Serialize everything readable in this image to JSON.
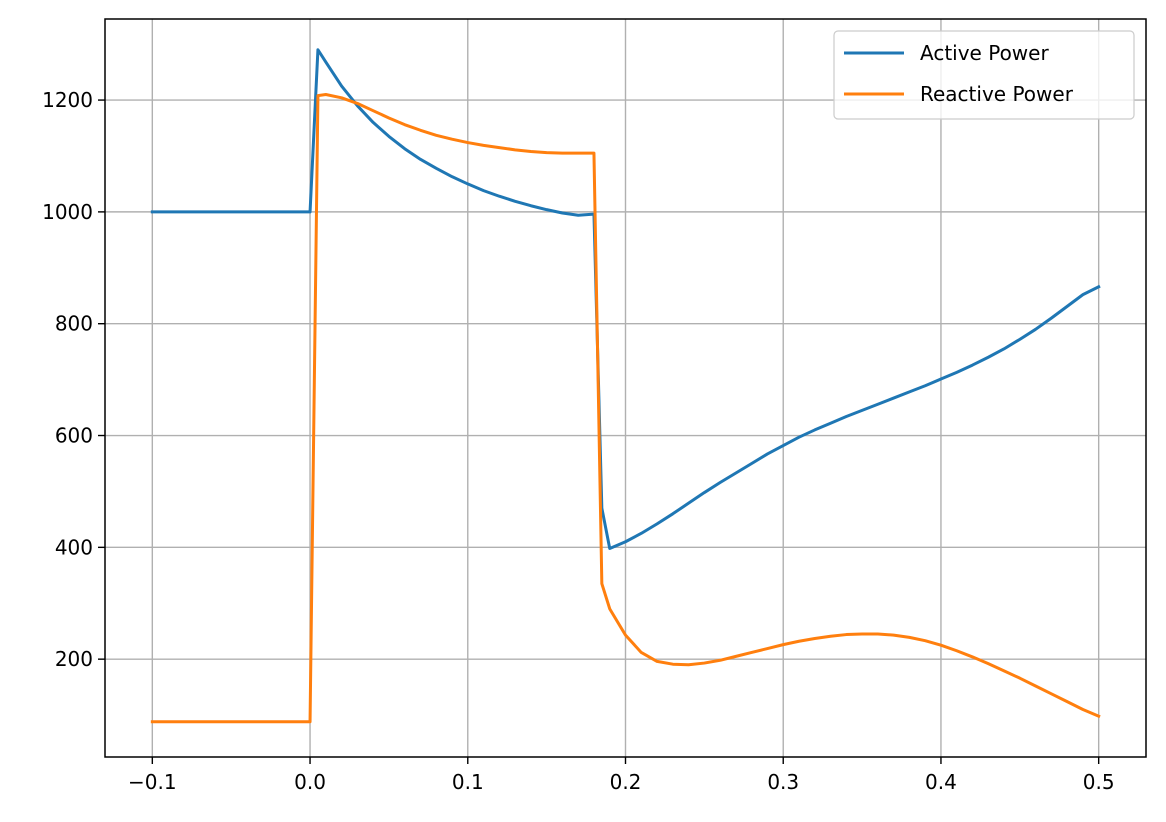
{
  "chart_data": {
    "type": "line",
    "title": "",
    "xlabel": "",
    "ylabel": "",
    "xlim": [
      -0.13,
      0.53
    ],
    "ylim": [
      25,
      1345
    ],
    "xticks": [
      -0.1,
      0.0,
      0.1,
      0.2,
      0.3,
      0.4,
      0.5
    ],
    "xtick_labels": [
      "−0.1",
      "0.0",
      "0.1",
      "0.2",
      "0.3",
      "0.4",
      "0.5"
    ],
    "yticks": [
      200,
      400,
      600,
      800,
      1000,
      1200
    ],
    "ytick_labels": [
      "200",
      "400",
      "600",
      "800",
      "1000",
      "1200"
    ],
    "grid": true,
    "legend_position": "top-right",
    "series": [
      {
        "name": "Active Power",
        "color": "#1f77b4",
        "points": [
          [
            -0.1,
            1000
          ],
          [
            0.0,
            1000
          ],
          [
            0.005,
            1290
          ],
          [
            0.01,
            1268
          ],
          [
            0.02,
            1225
          ],
          [
            0.03,
            1190
          ],
          [
            0.04,
            1160
          ],
          [
            0.05,
            1135
          ],
          [
            0.06,
            1113
          ],
          [
            0.07,
            1094
          ],
          [
            0.08,
            1078
          ],
          [
            0.09,
            1063
          ],
          [
            0.1,
            1050
          ],
          [
            0.11,
            1038
          ],
          [
            0.12,
            1028
          ],
          [
            0.13,
            1019
          ],
          [
            0.14,
            1011
          ],
          [
            0.15,
            1004
          ],
          [
            0.16,
            998
          ],
          [
            0.17,
            994
          ],
          [
            0.18,
            996
          ],
          [
            0.185,
            470
          ],
          [
            0.19,
            398
          ],
          [
            0.2,
            410
          ],
          [
            0.21,
            425
          ],
          [
            0.22,
            442
          ],
          [
            0.23,
            460
          ],
          [
            0.24,
            479
          ],
          [
            0.25,
            498
          ],
          [
            0.26,
            516
          ],
          [
            0.27,
            533
          ],
          [
            0.28,
            550
          ],
          [
            0.29,
            567
          ],
          [
            0.3,
            582
          ],
          [
            0.31,
            597
          ],
          [
            0.32,
            610
          ],
          [
            0.33,
            622
          ],
          [
            0.34,
            634
          ],
          [
            0.35,
            645
          ],
          [
            0.36,
            656
          ],
          [
            0.37,
            667
          ],
          [
            0.38,
            678
          ],
          [
            0.39,
            689
          ],
          [
            0.4,
            701
          ],
          [
            0.41,
            713
          ],
          [
            0.42,
            726
          ],
          [
            0.43,
            740
          ],
          [
            0.44,
            755
          ],
          [
            0.45,
            772
          ],
          [
            0.46,
            790
          ],
          [
            0.47,
            810
          ],
          [
            0.48,
            831
          ],
          [
            0.49,
            852
          ],
          [
            0.5,
            866
          ]
        ]
      },
      {
        "name": "Reactive Power",
        "color": "#ff7f0e",
        "points": [
          [
            -0.1,
            88
          ],
          [
            0.0,
            88
          ],
          [
            0.005,
            1208
          ],
          [
            0.01,
            1210
          ],
          [
            0.02,
            1204
          ],
          [
            0.03,
            1194
          ],
          [
            0.04,
            1181
          ],
          [
            0.05,
            1168
          ],
          [
            0.06,
            1156
          ],
          [
            0.07,
            1146
          ],
          [
            0.08,
            1137
          ],
          [
            0.09,
            1130
          ],
          [
            0.1,
            1124
          ],
          [
            0.11,
            1119
          ],
          [
            0.12,
            1115
          ],
          [
            0.13,
            1111
          ],
          [
            0.14,
            1108
          ],
          [
            0.15,
            1106
          ],
          [
            0.16,
            1105
          ],
          [
            0.17,
            1105
          ],
          [
            0.18,
            1105
          ],
          [
            0.185,
            335
          ],
          [
            0.19,
            290
          ],
          [
            0.2,
            243
          ],
          [
            0.21,
            212
          ],
          [
            0.22,
            196
          ],
          [
            0.23,
            191
          ],
          [
            0.24,
            190
          ],
          [
            0.25,
            193
          ],
          [
            0.26,
            198
          ],
          [
            0.27,
            205
          ],
          [
            0.28,
            212
          ],
          [
            0.29,
            219
          ],
          [
            0.3,
            226
          ],
          [
            0.31,
            232
          ],
          [
            0.32,
            237
          ],
          [
            0.33,
            241
          ],
          [
            0.34,
            244
          ],
          [
            0.35,
            245
          ],
          [
            0.36,
            245
          ],
          [
            0.37,
            243
          ],
          [
            0.38,
            239
          ],
          [
            0.39,
            233
          ],
          [
            0.4,
            225
          ],
          [
            0.41,
            215
          ],
          [
            0.42,
            204
          ],
          [
            0.43,
            192
          ],
          [
            0.44,
            179
          ],
          [
            0.45,
            166
          ],
          [
            0.46,
            152
          ],
          [
            0.47,
            138
          ],
          [
            0.48,
            124
          ],
          [
            0.49,
            110
          ],
          [
            0.5,
            98
          ]
        ]
      }
    ]
  }
}
